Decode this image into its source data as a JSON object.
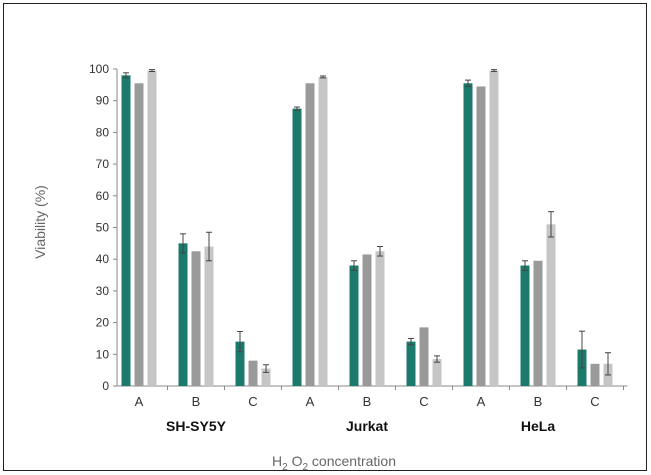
{
  "chart_data": {
    "type": "bar",
    "ylabel": "Viability (%)",
    "xlabel": "H2 O2 concentration",
    "ylim": [
      0,
      100
    ],
    "yticks": [
      0,
      10,
      20,
      30,
      40,
      50,
      60,
      70,
      80,
      90,
      100
    ],
    "grid": false,
    "groups": [
      {
        "name": "SH-SY5Y",
        "categories": [
          {
            "label": "A",
            "values": [
              98,
              95.5,
              99.5
            ],
            "errors": [
              0.8,
              0,
              0.3
            ]
          },
          {
            "label": "B",
            "values": [
              45,
              42.5,
              44
            ],
            "errors": [
              3,
              0,
              4.5
            ]
          },
          {
            "label": "C",
            "values": [
              14,
              8,
              5.5
            ],
            "errors": [
              3.2,
              0,
              1.2
            ]
          }
        ]
      },
      {
        "name": "Jurkat",
        "categories": [
          {
            "label": "A",
            "values": [
              87.5,
              95.5,
              97.5
            ],
            "errors": [
              0.5,
              0,
              0.3
            ]
          },
          {
            "label": "B",
            "values": [
              38,
              41.5,
              42.5
            ],
            "errors": [
              1.5,
              0,
              1.5
            ]
          },
          {
            "label": "C",
            "values": [
              14,
              18.5,
              8.5
            ],
            "errors": [
              1,
              0,
              1
            ]
          }
        ]
      },
      {
        "name": "HeLa",
        "categories": [
          {
            "label": "A",
            "values": [
              95.5,
              94.5,
              99.5
            ],
            "errors": [
              1,
              0,
              0.3
            ]
          },
          {
            "label": "B",
            "values": [
              38,
              39.5,
              51
            ],
            "errors": [
              1.5,
              0,
              4
            ]
          },
          {
            "label": "C",
            "values": [
              11.5,
              7,
              7
            ],
            "errors": [
              5.8,
              0,
              3.5
            ]
          }
        ]
      }
    ],
    "colors": [
      "#1b7a6c",
      "#9a9a9a",
      "#c6c6c6"
    ],
    "error_bar_color": "#444444"
  }
}
